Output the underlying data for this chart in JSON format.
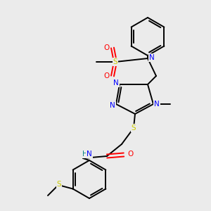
{
  "bg_color": "#ebebeb",
  "C": "#000000",
  "N": "#0000ff",
  "O": "#ff0000",
  "S": "#cccc00",
  "H": "#008080",
  "lw": 1.4,
  "fontsize": 7.5
}
